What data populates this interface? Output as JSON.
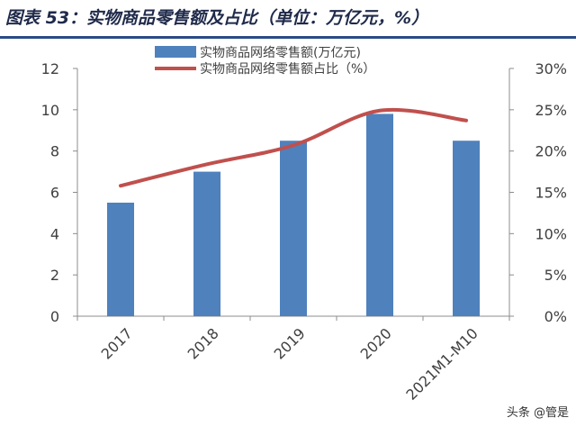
{
  "title": "图表 53：实物商品零售额及占比（单位：万亿元，%）",
  "watermark": "头条 @管是",
  "chart_data": {
    "type": "bar",
    "categories": [
      "2017",
      "2018",
      "2019",
      "2020",
      "2021M1-M10"
    ],
    "series": [
      {
        "name": "实物商品网络零售额(万亿元)",
        "type": "bar",
        "axis": "left",
        "color": "#4f81bd",
        "values": [
          5.5,
          7.0,
          8.5,
          9.8,
          8.5
        ]
      },
      {
        "name": "实物商品网络零售额占比（%）",
        "type": "line",
        "axis": "right",
        "color": "#c0504d",
        "values": [
          15.8,
          18.4,
          20.7,
          24.9,
          23.7
        ]
      }
    ],
    "y_left": {
      "min": 0,
      "max": 12,
      "ticks": [
        0,
        2,
        4,
        6,
        8,
        10,
        12
      ]
    },
    "y_right": {
      "min": 0,
      "max": 30,
      "ticks": [
        "0%",
        "5%",
        "10%",
        "15%",
        "20%",
        "25%",
        "30%"
      ]
    },
    "legend_position": "top-center",
    "grid": false
  }
}
